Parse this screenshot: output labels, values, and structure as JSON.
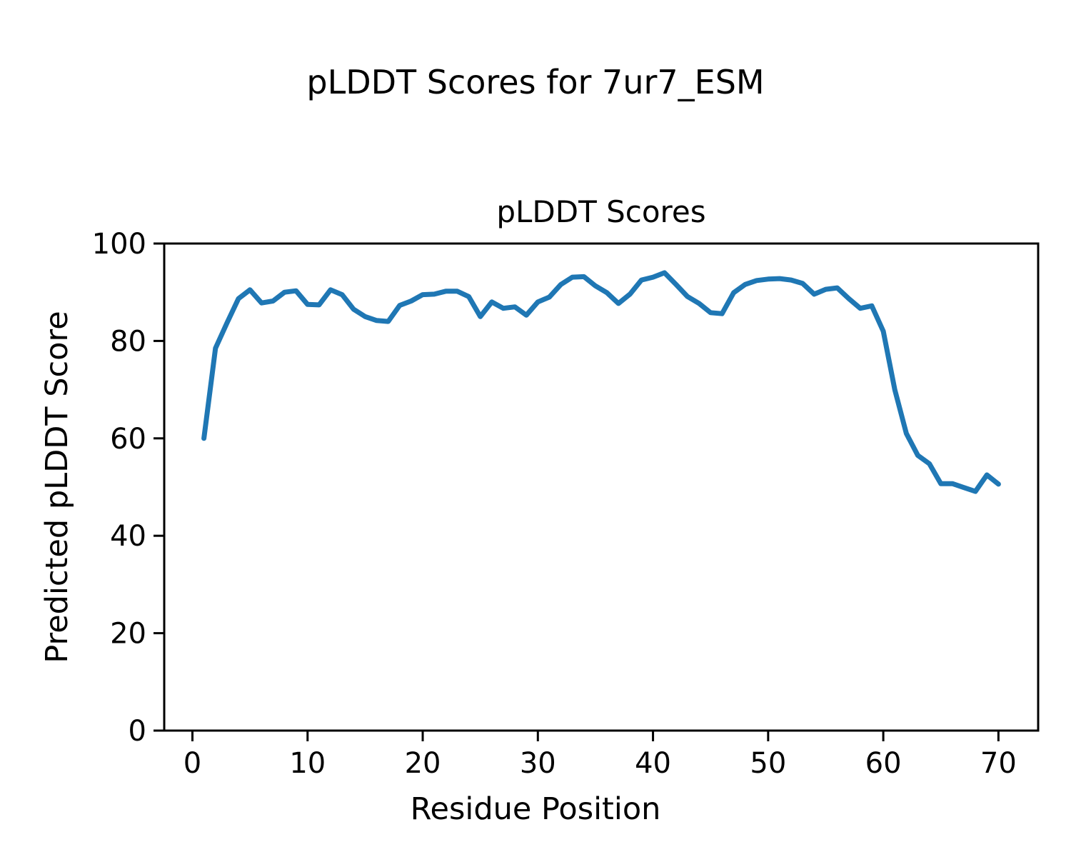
{
  "figure": {
    "suptitle": "pLDDT Scores for 7ur7_ESM",
    "background_color": "#ffffff",
    "text_color": "#000000"
  },
  "chart_data": {
    "type": "line",
    "title": "pLDDT Scores",
    "xlabel": "Residue Position",
    "ylabel": "Predicted pLDDT Score",
    "series": [
      {
        "name": "pLDDT",
        "color": "#1f77b4",
        "x": [
          1,
          2,
          3,
          4,
          5,
          6,
          7,
          8,
          9,
          10,
          11,
          12,
          13,
          14,
          15,
          16,
          17,
          18,
          19,
          20,
          21,
          22,
          23,
          24,
          25,
          26,
          27,
          28,
          29,
          30,
          31,
          32,
          33,
          34,
          35,
          36,
          37,
          38,
          39,
          40,
          41,
          42,
          43,
          44,
          45,
          46,
          47,
          48,
          49,
          50,
          51,
          52,
          53,
          54,
          55,
          56,
          57,
          58,
          59,
          60,
          61,
          62,
          63,
          64,
          65,
          66,
          67,
          68,
          69,
          70
        ],
        "values": [
          60,
          78.5,
          83.7,
          88.7,
          90.5,
          87.8,
          88.2,
          90,
          90.3,
          87.5,
          87.4,
          90.5,
          89.5,
          86.5,
          85,
          84.2,
          84,
          87.3,
          88.2,
          89.5,
          89.6,
          90.2,
          90.2,
          89.1,
          85,
          88,
          86.7,
          87,
          85.3,
          88,
          89,
          91.6,
          93.1,
          93.2,
          91.3,
          89.9,
          87.7,
          89.6,
          92.5,
          93.1,
          94,
          91.6,
          89.1,
          87.7,
          85.8,
          85.6,
          89.9,
          91.6,
          92.4,
          92.7,
          92.8,
          92.5,
          91.8,
          89.6,
          90.6,
          90.9,
          88.7,
          86.7,
          87.2,
          82,
          70,
          61,
          56.5,
          54.8,
          50.7,
          50.7,
          49.9,
          49.1,
          52.5,
          50.6
        ]
      }
    ],
    "xlim": [
      -2.45,
      73.45
    ],
    "ylim": [
      0,
      100
    ],
    "xticks": [
      0,
      10,
      20,
      30,
      40,
      50,
      60,
      70
    ],
    "yticks": [
      0,
      20,
      40,
      60,
      80,
      100
    ],
    "grid": false,
    "legend_position": "none",
    "axes_color": "#000000"
  }
}
